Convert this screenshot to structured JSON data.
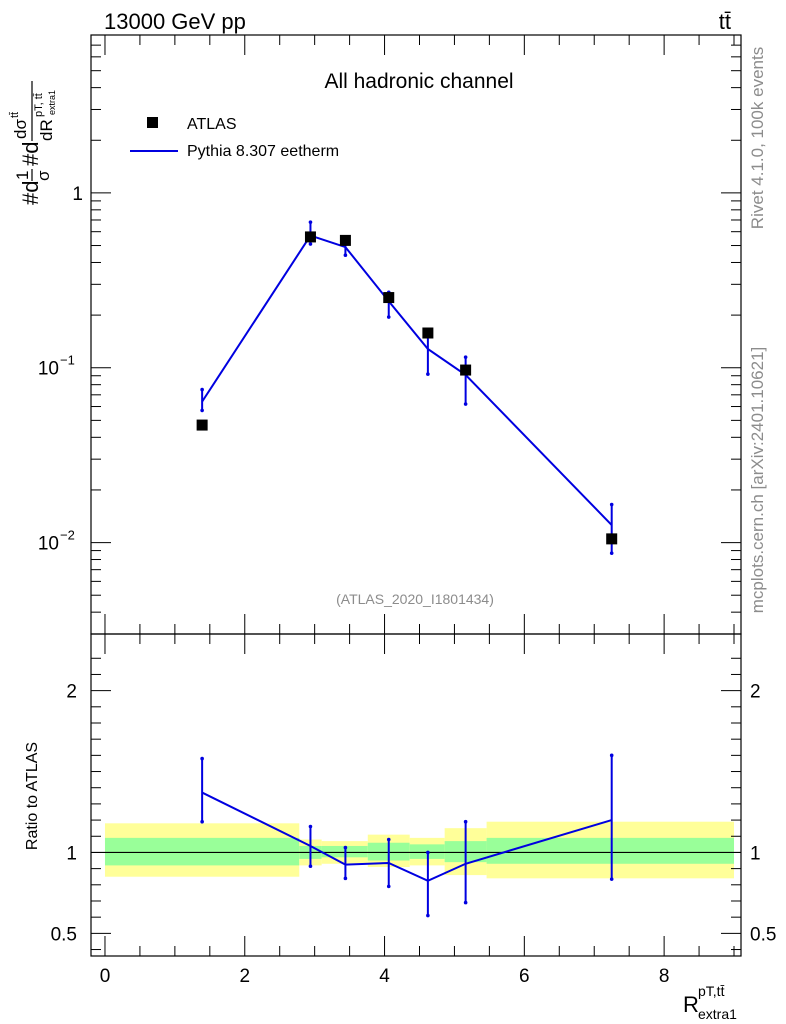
{
  "header": {
    "energy": "13000 GeV pp",
    "process": "tt̄"
  },
  "side_labels": {
    "rivet": "Rivet 4.1.0,  100k events",
    "source": "mcplots.cern.ch [arXiv:2401.10621]"
  },
  "chart_data": [
    {
      "type": "scatter",
      "title": "All hadronic channel",
      "ylabel": "#d(1/σ)#d dσ^{tt̄}/dR^{pT,tt̄}_{extra1}",
      "yscale": "log",
      "ylim": [
        0.003,
        8
      ],
      "xlim": [
        -0.2,
        9.1
      ],
      "watermark": "(ATLAS_2020_I1801434)",
      "y_tick_labels": {
        "one": "1",
        "ten": "10",
        "exp_m1": "−1",
        "exp_m2": "−2"
      },
      "legend": {
        "position": "top-left",
        "data_label": "ATLAS",
        "mc_label": "Pythia 8.307 eetherm"
      },
      "series": [
        {
          "name": "ATLAS",
          "x": [
            1.39,
            2.94,
            3.44,
            4.06,
            4.62,
            5.16,
            7.25
          ],
          "y": [
            0.047,
            0.56,
            0.535,
            0.252,
            0.158,
            0.097,
            0.0105
          ]
        },
        {
          "name": "Pythia 8.307 eetherm",
          "x": [
            1.39,
            2.94,
            3.44,
            4.06,
            4.62,
            5.16,
            7.25
          ],
          "y": [
            0.064,
            0.57,
            0.49,
            0.24,
            0.128,
            0.091,
            0.0126
          ],
          "err_lo": [
            0.057,
            0.51,
            0.44,
            0.195,
            0.092,
            0.062,
            0.0087
          ],
          "err_hi": [
            0.075,
            0.68,
            0.55,
            0.27,
            0.152,
            0.115,
            0.0165
          ]
        }
      ]
    },
    {
      "type": "line",
      "ylabel": "Ratio to ATLAS",
      "xlabel": "R^{pT,tt̄}_{extra1}",
      "ylim": [
        0.36,
        2.35
      ],
      "y_ticks": [
        0.5,
        1,
        2
      ],
      "y_tick_labels": [
        "0.5",
        "1",
        "2"
      ],
      "x_ticks": [
        0,
        2,
        4,
        6,
        8
      ],
      "x_tick_labels": [
        "0",
        "2",
        "4",
        "6",
        "8"
      ],
      "bands": [
        {
          "x_lo": 0.0,
          "x_hi": 2.78,
          "inner_lo": 0.92,
          "inner_hi": 1.09,
          "outer_lo": 0.85,
          "outer_hi": 1.18
        },
        {
          "x_lo": 2.78,
          "x_hi": 3.1,
          "inner_lo": 0.96,
          "inner_hi": 1.04,
          "outer_lo": 0.92,
          "outer_hi": 1.08
        },
        {
          "x_lo": 3.1,
          "x_hi": 3.76,
          "inner_lo": 0.97,
          "inner_hi": 1.04,
          "outer_lo": 0.93,
          "outer_hi": 1.07
        },
        {
          "x_lo": 3.76,
          "x_hi": 4.36,
          "inner_lo": 0.95,
          "inner_hi": 1.06,
          "outer_lo": 0.91,
          "outer_hi": 1.11
        },
        {
          "x_lo": 4.36,
          "x_hi": 4.86,
          "inner_lo": 0.96,
          "inner_hi": 1.05,
          "outer_lo": 0.92,
          "outer_hi": 1.09
        },
        {
          "x_lo": 4.86,
          "x_hi": 5.46,
          "inner_lo": 0.94,
          "inner_hi": 1.07,
          "outer_lo": 0.86,
          "outer_hi": 1.15
        },
        {
          "x_lo": 5.46,
          "x_hi": 9.0,
          "inner_lo": 0.93,
          "inner_hi": 1.09,
          "outer_lo": 0.84,
          "outer_hi": 1.19
        }
      ],
      "series": [
        {
          "name": "Pythia 8.307 eetherm",
          "x": [
            1.39,
            2.94,
            3.44,
            4.06,
            4.62,
            5.16,
            7.25
          ],
          "y": [
            1.37,
            1.04,
            0.925,
            0.935,
            0.825,
            0.93,
            1.2
          ],
          "err_lo": [
            1.19,
            0.915,
            0.84,
            0.79,
            0.61,
            0.69,
            0.835
          ],
          "err_hi": [
            1.58,
            1.16,
            1.03,
            1.08,
            1.0,
            1.19,
            1.6
          ]
        }
      ]
    }
  ]
}
